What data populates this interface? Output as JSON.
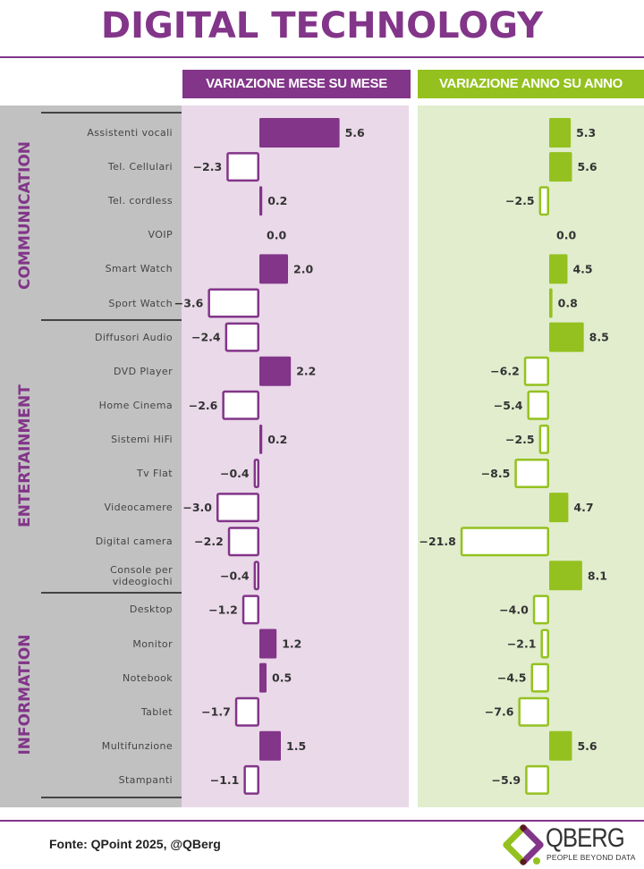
{
  "title": "DIGITAL TECHNOLOGY",
  "headers": {
    "mom": "VARIAZIONE MESE SU MESE",
    "yoy": "VARIAZIONE ANNO SU ANNO"
  },
  "colors": {
    "purple": "#823589",
    "green": "#94c11f",
    "purple_bg": "#ead9e9",
    "green_bg": "#e1edcd",
    "gray_bg": "#c1c1c1",
    "label_text": "#333333"
  },
  "footer": {
    "source": "Fonte: QPoint 2025, @QBerg",
    "logo_name": "QBERG",
    "logo_tagline": "PEOPLE BEYOND DATA"
  },
  "chart_data": {
    "type": "bar",
    "orientation": "horizontal",
    "title": "DIGITAL TECHNOLOGY",
    "groups": [
      {
        "name": "COMMUNICATION",
        "categories": [
          "Assistenti vocali",
          "Tel. Cellulari",
          "Tel. cordless",
          "VOIP",
          "Smart Watch",
          "Sport Watch"
        ]
      },
      {
        "name": "ENTERTAINMENT",
        "categories": [
          "Diffusori Audio",
          "DVD Player",
          "Home Cinema",
          "Sistemi HiFi",
          "Tv Flat",
          "Videocamere",
          "Digital camera",
          "Console per videogiochi"
        ]
      },
      {
        "name": "INFORMATION",
        "categories": [
          "Desktop",
          "Monitor",
          "Notebook",
          "Tablet",
          "Multifunzione",
          "Stampanti"
        ]
      }
    ],
    "categories": [
      "Assistenti vocali",
      "Tel. Cellulari",
      "Tel. cordless",
      "VOIP",
      "Smart Watch",
      "Sport Watch",
      "Diffusori Audio",
      "DVD Player",
      "Home Cinema",
      "Sistemi HiFi",
      "Tv Flat",
      "Videocamere",
      "Digital camera",
      "Console per videogiochi",
      "Desktop",
      "Monitor",
      "Notebook",
      "Tablet",
      "Multifunzione",
      "Stampanti"
    ],
    "series": [
      {
        "name": "VARIAZIONE MESE SU MESE",
        "values": [
          5.6,
          -2.3,
          0.2,
          0.0,
          2.0,
          -3.6,
          -2.4,
          2.2,
          -2.6,
          0.2,
          -0.4,
          -3.0,
          -2.2,
          -0.4,
          -1.2,
          1.2,
          0.5,
          -1.7,
          1.5,
          -1.1
        ]
      },
      {
        "name": "VARIAZIONE ANNO SU ANNO",
        "values": [
          5.3,
          5.6,
          -2.5,
          0.0,
          4.5,
          0.8,
          8.5,
          -6.2,
          -5.4,
          -2.5,
          -8.5,
          4.7,
          -21.8,
          8.1,
          -4.0,
          -2.1,
          -4.5,
          -7.6,
          5.6,
          -5.9
        ]
      }
    ],
    "value_labels": {
      "mom": [
        "5.6",
        "−2.3",
        "0.2",
        "0.0",
        "2.0",
        "−3.6",
        "−2.4",
        "2.2",
        "−2.6",
        "0.2",
        "−0.4",
        "−3.0",
        "−2.2",
        "−0.4",
        "−1.2",
        "1.2",
        "0.5",
        "−1.7",
        "1.5",
        "−1.1"
      ],
      "yoy": [
        "5.3",
        "5.6",
        "−2.5",
        "0.0",
        "4.5",
        "0.8",
        "8.5",
        "−6.2",
        "−5.4",
        "−2.5",
        "−8.5",
        "4.7",
        "−21.8",
        "8.1",
        "−4.0",
        "−2.1",
        "−4.5",
        "−7.6",
        "5.6",
        "−5.9"
      ]
    },
    "xlabel": "",
    "ylabel": "",
    "grid": false,
    "legend": "none",
    "positive_style": "filled",
    "negative_style": "outlined"
  }
}
